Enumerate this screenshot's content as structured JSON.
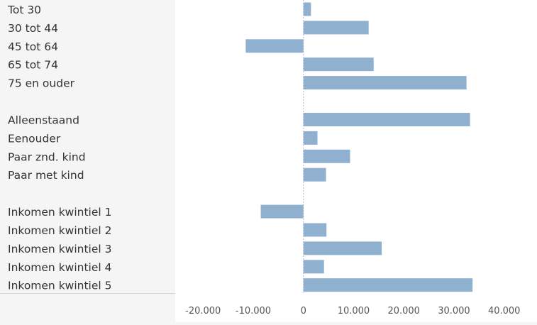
{
  "chart_data": {
    "type": "bar",
    "orientation": "horizontal",
    "categories": [
      "Tot 30",
      "30 tot 44",
      "45 tot 64",
      "65 tot 74",
      "75 en ouder",
      "Alleenstaand",
      "Eenouder",
      "Paar znd. kind",
      "Paar met kind",
      "Inkomen kwintiel 1",
      "Inkomen kwintiel 2",
      "Inkomen kwintiel 3",
      "Inkomen kwintiel 4",
      "Inkomen kwintiel 5"
    ],
    "groups": [
      5,
      4,
      5
    ],
    "values": [
      1500,
      13000,
      -11500,
      14000,
      32500,
      33200,
      2800,
      9300,
      4500,
      -8500,
      4600,
      15600,
      4100,
      33700
    ],
    "xlim": [
      -23000,
      44000
    ],
    "xticks": [
      -20000,
      -10000,
      0,
      10000,
      20000,
      30000,
      40000
    ],
    "xtick_labels": [
      "-20.000",
      "-10.000",
      "0",
      "10.000",
      "20.000",
      "30.000",
      "40.000"
    ],
    "bar_color": "#8fb0cf",
    "zero_line_color": "#bbbbbb",
    "grid": false,
    "legend": "none"
  }
}
